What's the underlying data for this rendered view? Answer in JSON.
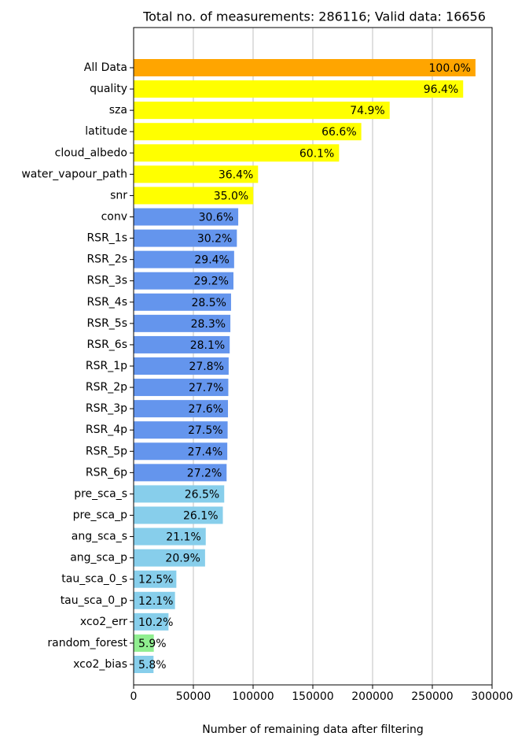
{
  "chart_data": {
    "type": "barh",
    "title": "Total no. of measurements: 286116; Valid data: 16656",
    "x_label": "Number of remaining data after filtering",
    "categories": [
      "All Data",
      "quality",
      "sza",
      "latitude",
      "cloud_albedo",
      "water_vapour_path",
      "snr",
      "conv",
      "RSR_1s",
      "RSR_2s",
      "RSR_3s",
      "RSR_4s",
      "RSR_5s",
      "RSR_6s",
      "RSR_1p",
      "RSR_2p",
      "RSR_3p",
      "RSR_4p",
      "RSR_5p",
      "RSR_6p",
      "pre_sca_s",
      "pre_sca_p",
      "ang_sca_s",
      "ang_sca_p",
      "tau_sca_0_s",
      "tau_sca_0_p",
      "xco2_err",
      "random_forest",
      "xco2_bias"
    ],
    "values": [
      286116,
      275816,
      214301,
      190553,
      171956,
      104146,
      100141,
      87551,
      86407,
      84118,
      83546,
      81543,
      80971,
      80399,
      79540,
      79254,
      78968,
      78682,
      78396,
      77824,
      75821,
      74676,
      60370,
      59798,
      35765,
      34620,
      29184,
      16881,
      16656
    ],
    "value_labels": [
      "100.0%",
      "96.4%",
      "74.9%",
      "66.6%",
      "60.1%",
      "36.4%",
      "35.0%",
      "30.6%",
      "30.2%",
      "29.4%",
      "29.2%",
      "28.5%",
      "28.3%",
      "28.1%",
      "27.8%",
      "27.7%",
      "27.6%",
      "27.5%",
      "27.4%",
      "27.2%",
      "26.5%",
      "26.1%",
      "21.1%",
      "20.9%",
      "12.5%",
      "12.1%",
      "10.2%",
      "5.9%",
      "5.8%"
    ],
    "colors": [
      "#ffa500",
      "#ffff00",
      "#ffff00",
      "#ffff00",
      "#ffff00",
      "#ffff00",
      "#ffff00",
      "#6495ed",
      "#6495ed",
      "#6495ed",
      "#6495ed",
      "#6495ed",
      "#6495ed",
      "#6495ed",
      "#6495ed",
      "#6495ed",
      "#6495ed",
      "#6495ed",
      "#6495ed",
      "#6495ed",
      "#87ceeb",
      "#87ceeb",
      "#87ceeb",
      "#87ceeb",
      "#87ceeb",
      "#87ceeb",
      "#87ceeb",
      "#90ee90",
      "#87ceeb"
    ],
    "xlim": [
      0,
      300000
    ],
    "xticks": [
      0,
      50000,
      100000,
      150000,
      200000,
      250000,
      300000
    ],
    "grid": true
  }
}
